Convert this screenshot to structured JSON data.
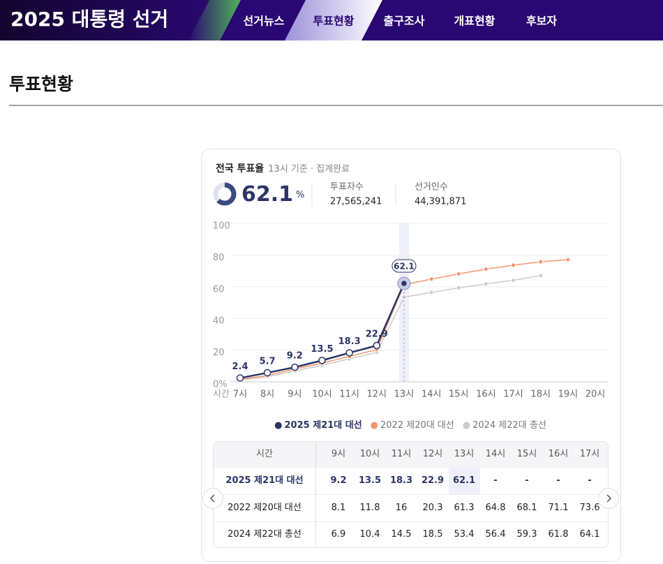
{
  "header": {
    "logo": "2025 대통령 선거",
    "nav": [
      "선거뉴스",
      "투표현황",
      "출구조사",
      "개표현황",
      "후보자"
    ],
    "active": 1
  },
  "page_title": "투표현황",
  "summary": {
    "title": "전국 투표율",
    "basis": "13시 기준 · 집계완료",
    "rate": 62.1,
    "rate_unit": "%",
    "stats": [
      {
        "label": "투표자수",
        "value": "27,565,241"
      },
      {
        "label": "선거인수",
        "value": "44,391,871"
      }
    ]
  },
  "chart_data": {
    "type": "line",
    "x_label": "시간",
    "categories": [
      "7시",
      "8시",
      "9시",
      "10시",
      "11시",
      "12시",
      "13시",
      "14시",
      "15시",
      "16시",
      "17시",
      "18시",
      "19시",
      "20시"
    ],
    "series": [
      {
        "name": "2025 제21대 대선",
        "color": "#2b3566",
        "values": [
          2.4,
          5.7,
          9.2,
          13.5,
          18.3,
          22.9,
          62.1,
          null,
          null,
          null,
          null,
          null,
          null,
          null
        ]
      },
      {
        "name": "2022 제20대 대선",
        "color": "#f5956c",
        "values": [
          1.6,
          4.0,
          8.1,
          11.8,
          16.0,
          20.3,
          61.3,
          64.8,
          68.1,
          71.1,
          73.6,
          75.7,
          77.1,
          null
        ]
      },
      {
        "name": "2024 제22대 총선",
        "color": "#cccccc",
        "values": [
          1.2,
          3.2,
          6.9,
          10.4,
          14.5,
          18.5,
          53.4,
          56.4,
          59.3,
          61.8,
          64.1,
          67.0,
          null,
          null
        ]
      }
    ],
    "ylim": [
      0,
      100
    ],
    "yticks": [
      {
        "value": 0,
        "label": "0%"
      },
      20,
      40,
      60,
      80,
      100
    ],
    "grid": true,
    "highlight_index": 6
  },
  "table": {
    "header": "시간",
    "empty_label": "-"
  }
}
